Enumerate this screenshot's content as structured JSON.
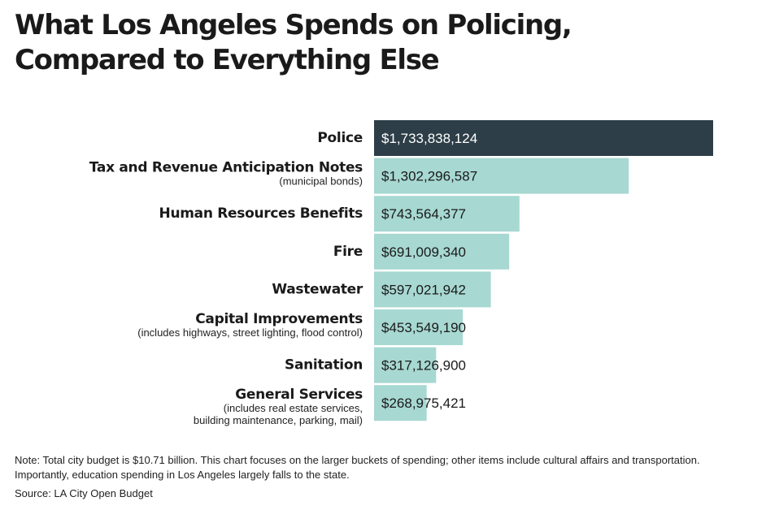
{
  "title": {
    "line1": "What Los Angeles Spends on Policing,",
    "line2": "Compared to Everything Else"
  },
  "note": "Note: Total city budget is $10.71 billion. This chart focuses on the larger buckets of spending; other items include cultural affairs and transportation. Importantly, education spending in Los Angeles largely falls to the state.",
  "source": "Source: LA City Open Budget",
  "colors": {
    "highlight": "#2d3e48",
    "bar": "#a7d8d2",
    "highlight_text": "#ffffff",
    "bar_text": "#1a1a1a"
  },
  "chart_data": {
    "type": "bar",
    "orientation": "horizontal",
    "categories": [
      "Police",
      "Tax and Revenue Anticipation Notes",
      "Human Resources Benefits",
      "Fire",
      "Wastewater",
      "Capital Improvements",
      "Sanitation",
      "General Services"
    ],
    "sublabels": [
      [],
      [
        "(municipal bonds)"
      ],
      [],
      [],
      [],
      [
        "(includes highways, street lighting, flood control)"
      ],
      [],
      [
        "(includes real estate services,",
        "building maintenance, parking, mail)"
      ]
    ],
    "values": [
      1733838124,
      1302296587,
      743564377,
      691009340,
      597021942,
      453549190,
      317126900,
      268975421
    ],
    "value_labels": [
      "$1,733,838,124",
      "$1,302,296,587",
      "$743,564,377",
      "$691,009,340",
      "$597,021,942",
      "$453,549,190",
      "$317,126,900",
      "$268,975,421"
    ],
    "highlight_index": 0,
    "grid": false,
    "legend": "none"
  }
}
